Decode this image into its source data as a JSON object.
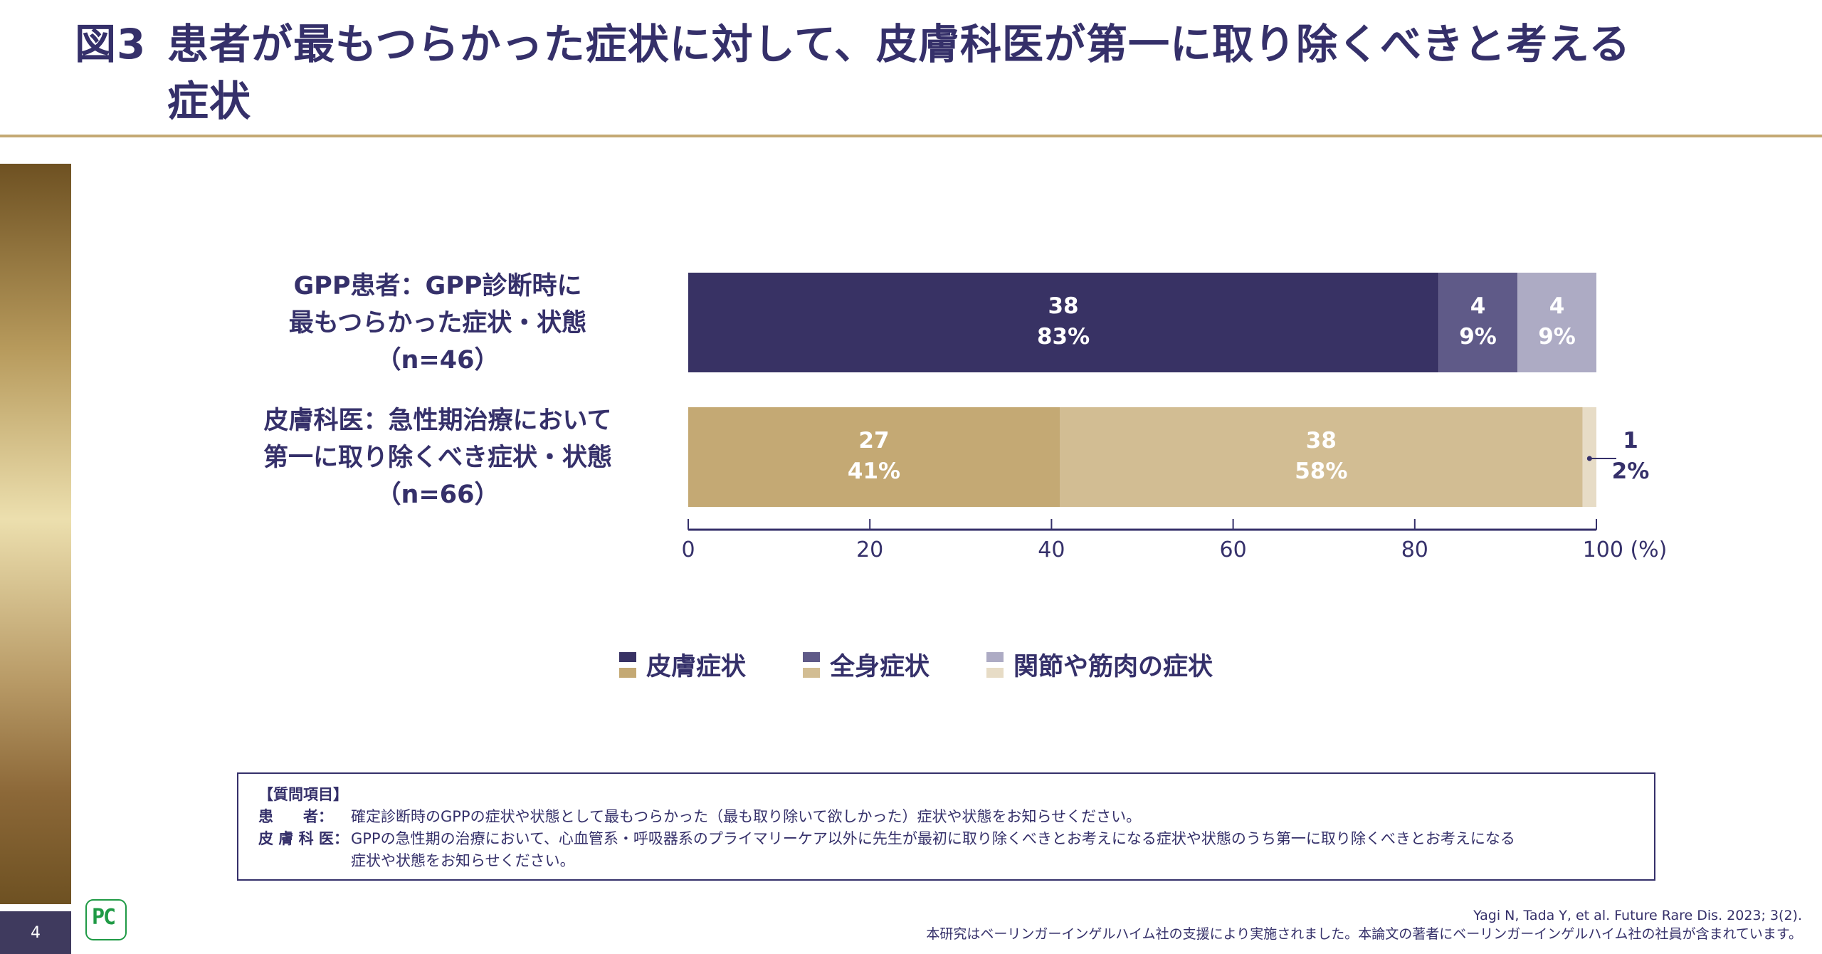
{
  "title": {
    "figure": "図3",
    "line1": "患者が最もつらかった症状に対して、皮膚科医が第一に取り除くべきと考える",
    "line2": "症状"
  },
  "page_number": "4",
  "logo_text": "PC",
  "chart_data": {
    "type": "bar",
    "orientation": "horizontal-stacked-100",
    "categories": [
      {
        "lines": [
          "GPP患者：GPP診断時に",
          "最もつらかった症状・状態",
          "（n=46）"
        ]
      },
      {
        "lines": [
          "皮膚科医：急性期治療において",
          "第一に取り除くべき症状・状態",
          "（n=66）"
        ]
      }
    ],
    "series": [
      {
        "name": "皮膚症状",
        "counts": [
          38,
          27
        ],
        "percents": [
          83,
          41
        ],
        "colors": [
          "#383264",
          "#c4a974"
        ]
      },
      {
        "name": "全身症状",
        "counts": [
          4,
          38
        ],
        "percents": [
          9,
          58
        ],
        "colors": [
          "#5f5a88",
          "#d2bd93"
        ]
      },
      {
        "name": "関節や筋肉の症状",
        "counts": [
          4,
          1
        ],
        "percents": [
          9,
          2
        ],
        "colors": [
          "#adabc4",
          "#e7dcc6"
        ]
      }
    ],
    "xticks": [
      "0",
      "20",
      "40",
      "60",
      "80",
      "100 (%)"
    ],
    "xlim": [
      0,
      100
    ],
    "xlabel": "(%)",
    "legend": "bottom"
  },
  "questions": {
    "heading": "【質問項目】",
    "patient_key": "患　　者：",
    "patient_text": "確定診断時のGPPの症状や状態として最もつらかった（最も取り除いて欲しかった）症状や状態をお知らせください。",
    "derm_key": "皮 膚 科 医：",
    "derm_text1": "GPPの急性期の治療において、心血管系・呼吸器系のプライマリーケア以外に先生が最初に取り除くべきとお考えになる症状や状態のうち第一に取り除くべきとお考えになる",
    "derm_text2": "症状や状態をお知らせください。"
  },
  "footer": {
    "citation": "Yagi N, Tada Y, et al. Future Rare Dis. 2023; 3(2).",
    "disclosure": "本研究はベーリンガーインゲルハイム社の支援により実施されました。本論文の著者にベーリンガーインゲルハイム社の社員が含まれています。"
  }
}
